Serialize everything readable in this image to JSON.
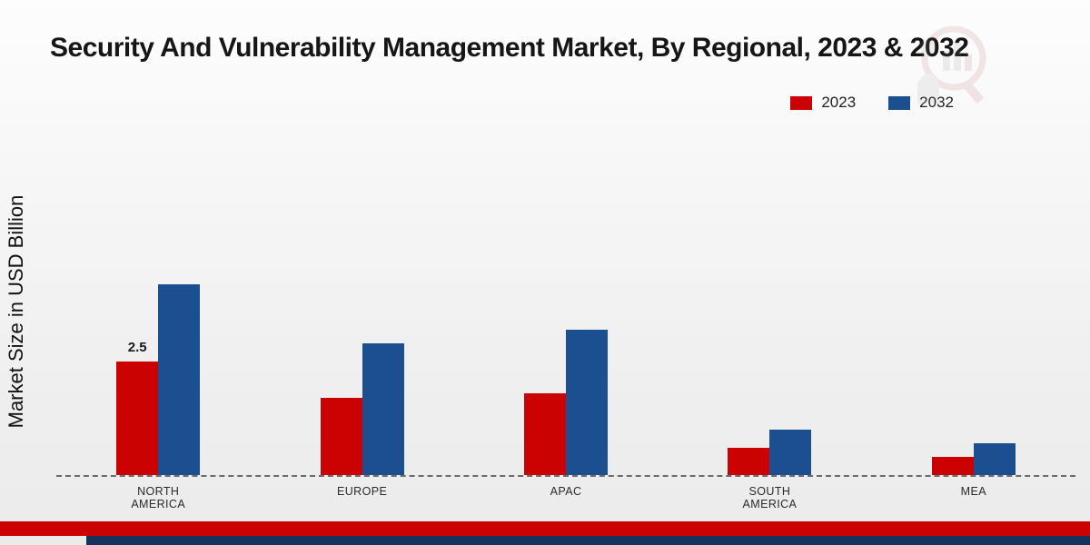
{
  "title": "Security And Vulnerability Management Market, By Regional, 2023 & 2032",
  "ylabel": "Market Size in USD Billion",
  "colors": {
    "series_2023": "#cc0202",
    "series_2032": "#1b4f8f",
    "bottom_strip_red": "#cc0202",
    "bottom_strip_navy": "#16335e",
    "baseline": "#6b6b6b"
  },
  "legend": [
    {
      "label": "2023",
      "color": "#cc0202"
    },
    {
      "label": "2032",
      "color": "#1b4f8f"
    }
  ],
  "chart_data": {
    "type": "bar",
    "title": "Security And Vulnerability Management Market, By Regional, 2023 & 2032",
    "xlabel": "",
    "ylabel": "Market Size in USD Billion",
    "categories": [
      "NORTH AMERICA",
      "EUROPE",
      "APAC",
      "SOUTH AMERICA",
      "MEA"
    ],
    "series": [
      {
        "name": "2023",
        "color": "#cc0202",
        "values": [
          2.5,
          1.7,
          1.8,
          0.6,
          0.4
        ]
      },
      {
        "name": "2032",
        "color": "#1b4f8f",
        "values": [
          4.2,
          2.9,
          3.2,
          1.0,
          0.7
        ]
      }
    ],
    "annotations": [
      {
        "category": "NORTH AMERICA",
        "series": "2023",
        "text": "2.5"
      }
    ],
    "ylim": [
      0,
      4.5
    ],
    "grid": false,
    "legend_position": "top-right",
    "baseline_style": "dashed"
  }
}
